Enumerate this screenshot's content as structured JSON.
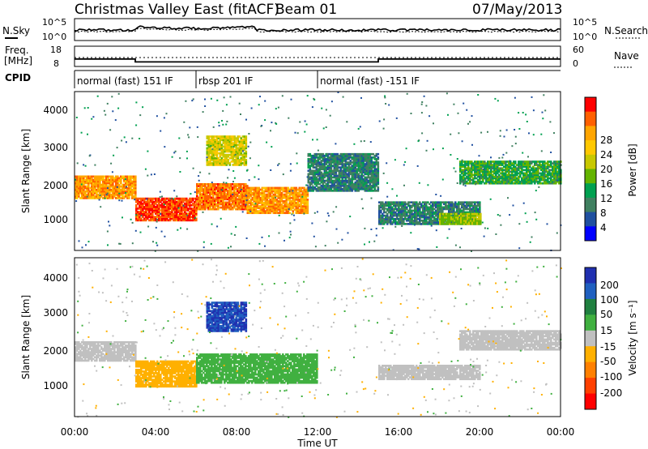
{
  "header": {
    "title": "Christmas Valley East (fitACF)",
    "beam": "Beam 01",
    "date": "07/May/2013"
  },
  "noise_panel": {
    "left_label": "N.Sky",
    "right_label": "N.Search",
    "left_ticks": [
      "10^5",
      "10^0"
    ],
    "right_ticks": [
      "10^5",
      "10^0"
    ]
  },
  "freq_panel": {
    "left_label_1": "Freq.",
    "left_label_2": "[MHz]",
    "right_label": "Nave",
    "left_ticks": [
      "18",
      "8"
    ],
    "right_ticks": [
      "60",
      "0"
    ]
  },
  "cpid": {
    "label": "CPID",
    "segments": [
      {
        "name": "normal (fast) 151 IF",
        "start_h": 0,
        "end_h": 6
      },
      {
        "name": "rbsp 201 IF",
        "start_h": 6,
        "end_h": 12
      },
      {
        "name": "normal (fast) -151 IF",
        "start_h": 12,
        "end_h": 24
      }
    ]
  },
  "power_panel": {
    "ylabel": "Slant Range [km]",
    "yticks": [
      "4000",
      "3000",
      "2000",
      "1000"
    ],
    "colorbar_label": "Power [dB]",
    "colorbar_ticks": [
      "28",
      "24",
      "20",
      "16",
      "12",
      "8",
      "4"
    ],
    "colorbar_colors": [
      "#ff0000",
      "#ff6000",
      "#ffa500",
      "#ffc800",
      "#c8c800",
      "#64b400",
      "#00a050",
      "#408060",
      "#2050a0",
      "#0000ff"
    ]
  },
  "velocity_panel": {
    "ylabel": "Slant Range [km]",
    "yticks": [
      "4000",
      "3000",
      "2000",
      "1000"
    ],
    "colorbar_label": "Velocity [m s⁻¹]",
    "colorbar_ticks": [
      "200",
      "100",
      "50",
      "15",
      "-15",
      "-50",
      "-100",
      "-200"
    ],
    "colorbar_colors": [
      "#2030b0",
      "#2060c0",
      "#208040",
      "#40b040",
      "#c0c0c0",
      "#ffb000",
      "#ff8000",
      "#ff4000",
      "#ff0000"
    ]
  },
  "xaxis": {
    "label": "Time UT",
    "ticks": [
      "00:00",
      "04:00",
      "08:00",
      "12:00",
      "16:00",
      "20:00",
      "00:00"
    ]
  },
  "chart_data": {
    "type": "heatmap",
    "title": "Christmas Valley East (fitACF)",
    "subtitle": "Beam 01",
    "date": "07/May/2013",
    "xlabel": "Time UT",
    "ylabel": "Slant Range [km]",
    "xlim_hours": [
      0,
      24
    ],
    "ylim_km": [
      200,
      4500
    ],
    "frequency_mhz_steps": [
      {
        "start_h": 0,
        "end_h": 3,
        "value": 12
      },
      {
        "start_h": 3,
        "end_h": 15,
        "value": 10
      },
      {
        "start_h": 15,
        "end_h": 24,
        "value": 12
      }
    ],
    "power_regions": [
      {
        "t_start": 0.0,
        "t_end": 3.0,
        "r_min": 1600,
        "r_max": 2200,
        "level_db": 24
      },
      {
        "t_start": 3.0,
        "t_end": 6.0,
        "r_min": 1000,
        "r_max": 1600,
        "level_db": 28
      },
      {
        "t_start": 6.0,
        "t_end": 8.5,
        "r_min": 1300,
        "r_max": 2000,
        "level_db": 26
      },
      {
        "t_start": 6.5,
        "t_end": 8.5,
        "r_min": 2500,
        "r_max": 3300,
        "level_db": 18
      },
      {
        "t_start": 8.5,
        "t_end": 11.5,
        "r_min": 1200,
        "r_max": 1900,
        "level_db": 24
      },
      {
        "t_start": 11.5,
        "t_end": 15.0,
        "r_min": 1800,
        "r_max": 2800,
        "level_db": 8
      },
      {
        "t_start": 15.0,
        "t_end": 20.0,
        "r_min": 900,
        "r_max": 1500,
        "level_db": 8
      },
      {
        "t_start": 18.0,
        "t_end": 20.0,
        "r_min": 900,
        "r_max": 1200,
        "level_db": 16
      },
      {
        "t_start": 19.0,
        "t_end": 24.0,
        "r_min": 2000,
        "r_max": 2600,
        "level_db": 12
      }
    ],
    "velocity_regions": [
      {
        "t_start": 0.0,
        "t_end": 3.0,
        "r_min": 1700,
        "r_max": 2200,
        "velocity_ms": 0
      },
      {
        "t_start": 3.0,
        "t_end": 6.0,
        "r_min": 1000,
        "r_max": 1700,
        "velocity_ms": -30
      },
      {
        "t_start": 6.0,
        "t_end": 12.0,
        "r_min": 1100,
        "r_max": 1900,
        "velocity_ms": 40
      },
      {
        "t_start": 6.5,
        "t_end": 8.5,
        "r_min": 2500,
        "r_max": 3300,
        "velocity_ms": 200
      },
      {
        "t_start": 15.0,
        "t_end": 20.0,
        "r_min": 1200,
        "r_max": 1600,
        "velocity_ms": 0
      },
      {
        "t_start": 19.0,
        "t_end": 24.0,
        "r_min": 2000,
        "r_max": 2500,
        "velocity_ms": 0
      }
    ]
  }
}
